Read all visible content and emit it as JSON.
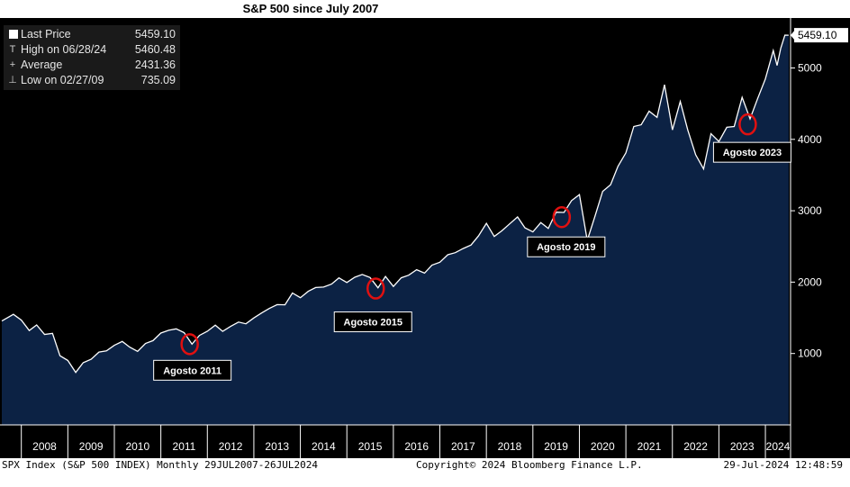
{
  "chart_data": {
    "type": "area",
    "title": "S&P 500 since July 2007",
    "series": [
      {
        "name": "SPX Index",
        "points": [
          [
            2007.58,
            1455
          ],
          [
            2007.83,
            1549
          ],
          [
            2008.0,
            1468
          ],
          [
            2008.17,
            1322
          ],
          [
            2008.33,
            1400
          ],
          [
            2008.5,
            1267
          ],
          [
            2008.67,
            1282
          ],
          [
            2008.83,
            968
          ],
          [
            2009.0,
            903
          ],
          [
            2009.17,
            735
          ],
          [
            2009.33,
            872
          ],
          [
            2009.5,
            919
          ],
          [
            2009.67,
            1020
          ],
          [
            2009.83,
            1036
          ],
          [
            2010.0,
            1115
          ],
          [
            2010.17,
            1169
          ],
          [
            2010.33,
            1089
          ],
          [
            2010.5,
            1030
          ],
          [
            2010.67,
            1141
          ],
          [
            2010.83,
            1180
          ],
          [
            2011.0,
            1286
          ],
          [
            2011.17,
            1325
          ],
          [
            2011.33,
            1345
          ],
          [
            2011.5,
            1292
          ],
          [
            2011.67,
            1131
          ],
          [
            2011.83,
            1253
          ],
          [
            2012.0,
            1312
          ],
          [
            2012.17,
            1397
          ],
          [
            2012.33,
            1310
          ],
          [
            2012.5,
            1380
          ],
          [
            2012.67,
            1440
          ],
          [
            2012.83,
            1416
          ],
          [
            2013.0,
            1498
          ],
          [
            2013.17,
            1569
          ],
          [
            2013.33,
            1631
          ],
          [
            2013.5,
            1685
          ],
          [
            2013.67,
            1682
          ],
          [
            2013.83,
            1848
          ],
          [
            2014.0,
            1782
          ],
          [
            2014.17,
            1872
          ],
          [
            2014.33,
            1924
          ],
          [
            2014.5,
            1931
          ],
          [
            2014.67,
            1972
          ],
          [
            2014.83,
            2059
          ],
          [
            2015.0,
            1995
          ],
          [
            2015.17,
            2068
          ],
          [
            2015.33,
            2107
          ],
          [
            2015.5,
            2064
          ],
          [
            2015.67,
            1920
          ],
          [
            2015.83,
            2080
          ],
          [
            2016.0,
            1940
          ],
          [
            2016.17,
            2060
          ],
          [
            2016.33,
            2097
          ],
          [
            2016.5,
            2174
          ],
          [
            2016.67,
            2126
          ],
          [
            2016.83,
            2238
          ],
          [
            2017.0,
            2279
          ],
          [
            2017.17,
            2384
          ],
          [
            2017.33,
            2412
          ],
          [
            2017.5,
            2470
          ],
          [
            2017.67,
            2519
          ],
          [
            2017.83,
            2647
          ],
          [
            2018.0,
            2824
          ],
          [
            2018.17,
            2640
          ],
          [
            2018.33,
            2718
          ],
          [
            2018.5,
            2816
          ],
          [
            2018.67,
            2913
          ],
          [
            2018.83,
            2760
          ],
          [
            2019.0,
            2704
          ],
          [
            2019.17,
            2834
          ],
          [
            2019.33,
            2752
          ],
          [
            2019.5,
            2980
          ],
          [
            2019.67,
            2976
          ],
          [
            2019.83,
            3141
          ],
          [
            2020.0,
            3226
          ],
          [
            2020.17,
            2585
          ],
          [
            2020.33,
            2912
          ],
          [
            2020.5,
            3271
          ],
          [
            2020.67,
            3364
          ],
          [
            2020.83,
            3622
          ],
          [
            2021.0,
            3811
          ],
          [
            2021.17,
            4181
          ],
          [
            2021.33,
            4204
          ],
          [
            2021.5,
            4395
          ],
          [
            2021.67,
            4308
          ],
          [
            2021.83,
            4766
          ],
          [
            2022.0,
            4132
          ],
          [
            2022.17,
            4530
          ],
          [
            2022.33,
            4132
          ],
          [
            2022.5,
            3785
          ],
          [
            2022.67,
            3585
          ],
          [
            2022.83,
            4080
          ],
          [
            2023.0,
            3970
          ],
          [
            2023.17,
            4169
          ],
          [
            2023.33,
            4180
          ],
          [
            2023.5,
            4589
          ],
          [
            2023.67,
            4288
          ],
          [
            2023.83,
            4568
          ],
          [
            2024.0,
            4846
          ],
          [
            2024.17,
            5243
          ],
          [
            2024.25,
            5035
          ],
          [
            2024.33,
            5277
          ],
          [
            2024.42,
            5460
          ],
          [
            2024.5,
            5459
          ]
        ]
      }
    ],
    "x_range": [
      2007.58,
      2024.58
    ],
    "x_ticks": [
      "2008",
      "2009",
      "2010",
      "2011",
      "2012",
      "2013",
      "2014",
      "2015",
      "2016",
      "2017",
      "2018",
      "2019",
      "2020",
      "2021",
      "2022",
      "2023",
      "2024"
    ],
    "ylim": [
      0,
      5700
    ],
    "y_ticks": [
      1000,
      2000,
      3000,
      4000,
      5000
    ],
    "last_value_label": "5459.10",
    "annotations": [
      {
        "label": "Agosto 2011",
        "x": 2011.62,
        "y": 1131
      },
      {
        "label": "Agosto 2015",
        "x": 2015.62,
        "y": 1910
      },
      {
        "label": "Agosto 2019",
        "x": 2019.62,
        "y": 2910
      },
      {
        "label": "Agosto 2023",
        "x": 2023.62,
        "y": 4210
      }
    ],
    "legend": [
      {
        "symbol": "square",
        "label": "Last Price",
        "value": "5459.10"
      },
      {
        "symbol": "T",
        "label": "High on 06/28/24",
        "value": "5460.48"
      },
      {
        "symbol": "+",
        "label": "Average",
        "value": "2431.36"
      },
      {
        "symbol": "⊥",
        "label": "Low on 02/27/09",
        "value": "735.09"
      }
    ]
  },
  "footer": {
    "left": "SPX Index (S&P 500 INDEX)  Monthly 29JUL2007-26JUL2024",
    "center": "Copyright© 2024 Bloomberg Finance L.P.",
    "right": "29-Jul-2024 12:48:59"
  },
  "colors": {
    "area": "#0c2244",
    "line": "#ffffff",
    "circle": "#e01010",
    "axis": "#ffffff"
  }
}
